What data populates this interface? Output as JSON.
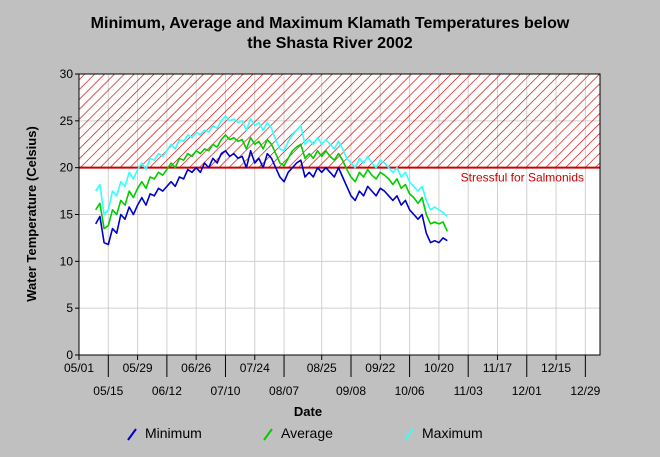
{
  "chart_data": {
    "type": "line",
    "title_line1": "Minimum, Average and Maximum Klamath Temperatures below",
    "title_line2": "the Shasta River 2002",
    "xlabel": "Date",
    "ylabel": "Water Temperature (Celsius)",
    "ylim": [
      0,
      30
    ],
    "yticks": [
      0,
      5,
      10,
      15,
      20,
      25,
      30
    ],
    "x_start": "05/01",
    "x_end": "01/05",
    "xticks_upper": [
      "05/01",
      "05/29",
      "06/26",
      "07/24",
      "08/25",
      "09/22",
      "10/20",
      "11/17",
      "12/15"
    ],
    "xticks_lower": [
      "05/15",
      "06/12",
      "07/10",
      "08/07",
      "09/08",
      "10/06",
      "11/03",
      "12/01",
      "12/29"
    ],
    "grid": true,
    "threshold": {
      "value": 20,
      "label": "Stressful for Salmonids",
      "color": "#cc0000",
      "band": [
        20,
        30
      ]
    },
    "legend_position": "bottom",
    "series": [
      {
        "name": "Minimum",
        "color": "#0000cc",
        "points": [
          [
            "05/09",
            14
          ],
          [
            "05/11",
            14.8
          ],
          [
            "05/13",
            12
          ],
          [
            "05/15",
            11.8
          ],
          [
            "05/17",
            13.5
          ],
          [
            "05/19",
            13
          ],
          [
            "05/21",
            15
          ],
          [
            "05/23",
            14.5
          ],
          [
            "05/25",
            15.8
          ],
          [
            "05/27",
            15
          ],
          [
            "05/29",
            16
          ],
          [
            "05/31",
            16.8
          ],
          [
            "06/02",
            16
          ],
          [
            "06/04",
            17.2
          ],
          [
            "06/06",
            17
          ],
          [
            "06/08",
            17.8
          ],
          [
            "06/10",
            17.5
          ],
          [
            "06/12",
            18
          ],
          [
            "06/14",
            18.5
          ],
          [
            "06/16",
            18
          ],
          [
            "06/18",
            19
          ],
          [
            "06/20",
            18.8
          ],
          [
            "06/22",
            19.8
          ],
          [
            "06/24",
            19.5
          ],
          [
            "06/26",
            20
          ],
          [
            "06/28",
            19.5
          ],
          [
            "06/30",
            20.5
          ],
          [
            "07/02",
            20
          ],
          [
            "07/04",
            21
          ],
          [
            "07/06",
            20.5
          ],
          [
            "07/08",
            21.5
          ],
          [
            "07/10",
            21.8
          ],
          [
            "07/12",
            21.2
          ],
          [
            "07/14",
            21.5
          ],
          [
            "07/16",
            21
          ],
          [
            "07/18",
            21.2
          ],
          [
            "07/20",
            20
          ],
          [
            "07/22",
            21.8
          ],
          [
            "07/24",
            20.5
          ],
          [
            "07/26",
            21
          ],
          [
            "07/28",
            20
          ],
          [
            "07/30",
            21.5
          ],
          [
            "08/01",
            21
          ],
          [
            "08/03",
            20
          ],
          [
            "08/05",
            19
          ],
          [
            "08/07",
            18.5
          ],
          [
            "08/09",
            19.5
          ],
          [
            "08/11",
            20
          ],
          [
            "08/13",
            20.5
          ],
          [
            "08/15",
            20.8
          ],
          [
            "08/17",
            19
          ],
          [
            "08/19",
            19.5
          ],
          [
            "08/21",
            19
          ],
          [
            "08/23",
            20
          ],
          [
            "08/25",
            19.5
          ],
          [
            "08/27",
            20
          ],
          [
            "08/29",
            19.5
          ],
          [
            "08/31",
            19
          ],
          [
            "09/02",
            20
          ],
          [
            "09/04",
            19
          ],
          [
            "09/06",
            18
          ],
          [
            "09/08",
            17
          ],
          [
            "09/10",
            16.5
          ],
          [
            "09/12",
            17.5
          ],
          [
            "09/14",
            17
          ],
          [
            "09/16",
            18
          ],
          [
            "09/18",
            17.5
          ],
          [
            "09/20",
            17
          ],
          [
            "09/22",
            17.8
          ],
          [
            "09/24",
            17.5
          ],
          [
            "09/26",
            17
          ],
          [
            "09/28",
            16.5
          ],
          [
            "09/30",
            17
          ],
          [
            "10/02",
            16
          ],
          [
            "10/04",
            16.5
          ],
          [
            "10/06",
            15.5
          ],
          [
            "10/08",
            15
          ],
          [
            "10/10",
            14.5
          ],
          [
            "10/12",
            15
          ],
          [
            "10/14",
            13
          ],
          [
            "10/16",
            12
          ],
          [
            "10/18",
            12.2
          ],
          [
            "10/20",
            12
          ],
          [
            "10/22",
            12.5
          ],
          [
            "10/24",
            12.2
          ]
        ]
      },
      {
        "name": "Average",
        "color": "#00cc00",
        "points": [
          [
            "05/09",
            15.5
          ],
          [
            "05/11",
            16.2
          ],
          [
            "05/13",
            13.5
          ],
          [
            "05/15",
            13.8
          ],
          [
            "05/17",
            15.5
          ],
          [
            "05/19",
            15
          ],
          [
            "05/21",
            16.5
          ],
          [
            "05/23",
            16
          ],
          [
            "05/25",
            17.5
          ],
          [
            "05/27",
            16.8
          ],
          [
            "05/29",
            17.8
          ],
          [
            "05/31",
            18.5
          ],
          [
            "06/02",
            17.8
          ],
          [
            "06/04",
            19
          ],
          [
            "06/06",
            18.8
          ],
          [
            "06/08",
            19.5
          ],
          [
            "06/10",
            19.2
          ],
          [
            "06/12",
            19.8
          ],
          [
            "06/14",
            20.5
          ],
          [
            "06/16",
            20
          ],
          [
            "06/18",
            21
          ],
          [
            "06/20",
            20.8
          ],
          [
            "06/22",
            21.5
          ],
          [
            "06/24",
            21.2
          ],
          [
            "06/26",
            21.8
          ],
          [
            "06/28",
            21.5
          ],
          [
            "06/30",
            22
          ],
          [
            "07/02",
            21.8
          ],
          [
            "07/04",
            22.5
          ],
          [
            "07/06",
            22.2
          ],
          [
            "07/08",
            23
          ],
          [
            "07/10",
            23.5
          ],
          [
            "07/12",
            23
          ],
          [
            "07/14",
            23.2
          ],
          [
            "07/16",
            22.8
          ],
          [
            "07/18",
            23
          ],
          [
            "07/20",
            22
          ],
          [
            "07/22",
            23.2
          ],
          [
            "07/24",
            22.5
          ],
          [
            "07/26",
            22.8
          ],
          [
            "07/28",
            22
          ],
          [
            "07/30",
            23
          ],
          [
            "08/01",
            22.5
          ],
          [
            "08/03",
            21.5
          ],
          [
            "08/05",
            20.5
          ],
          [
            "08/07",
            20.2
          ],
          [
            "08/09",
            21
          ],
          [
            "08/11",
            21.8
          ],
          [
            "08/13",
            22.2
          ],
          [
            "08/15",
            22.5
          ],
          [
            "08/17",
            21
          ],
          [
            "08/19",
            21.5
          ],
          [
            "08/21",
            21
          ],
          [
            "08/23",
            21.8
          ],
          [
            "08/25",
            21.2
          ],
          [
            "08/27",
            21.8
          ],
          [
            "08/29",
            21.2
          ],
          [
            "08/31",
            20.8
          ],
          [
            "09/02",
            21.5
          ],
          [
            "09/04",
            20.8
          ],
          [
            "09/06",
            19.8
          ],
          [
            "09/08",
            19
          ],
          [
            "09/10",
            18.5
          ],
          [
            "09/12",
            19.5
          ],
          [
            "09/14",
            19
          ],
          [
            "09/16",
            19.8
          ],
          [
            "09/18",
            19.2
          ],
          [
            "09/20",
            18.8
          ],
          [
            "09/22",
            19.5
          ],
          [
            "09/24",
            19.2
          ],
          [
            "09/26",
            18.8
          ],
          [
            "09/28",
            18.2
          ],
          [
            "09/30",
            18.8
          ],
          [
            "10/02",
            17.8
          ],
          [
            "10/04",
            18.2
          ],
          [
            "10/06",
            17.2
          ],
          [
            "10/08",
            16.8
          ],
          [
            "10/10",
            16.2
          ],
          [
            "10/12",
            16.8
          ],
          [
            "10/14",
            15
          ],
          [
            "10/16",
            14
          ],
          [
            "10/18",
            14.2
          ],
          [
            "10/20",
            14
          ],
          [
            "10/22",
            14.2
          ],
          [
            "10/24",
            13.2
          ]
        ]
      },
      {
        "name": "Maximum",
        "color": "#33ffff",
        "points": [
          [
            "05/09",
            17.5
          ],
          [
            "05/11",
            18.2
          ],
          [
            "05/13",
            15
          ],
          [
            "05/15",
            15.5
          ],
          [
            "05/17",
            17.5
          ],
          [
            "05/19",
            17
          ],
          [
            "05/21",
            18.5
          ],
          [
            "05/23",
            18
          ],
          [
            "05/25",
            19.5
          ],
          [
            "05/27",
            18.8
          ],
          [
            "05/29",
            19.8
          ],
          [
            "05/31",
            20.5
          ],
          [
            "06/02",
            19.8
          ],
          [
            "06/04",
            21
          ],
          [
            "06/06",
            20.8
          ],
          [
            "06/08",
            21.5
          ],
          [
            "06/10",
            21.2
          ],
          [
            "06/12",
            21.8
          ],
          [
            "06/14",
            22.5
          ],
          [
            "06/16",
            22
          ],
          [
            "06/18",
            23
          ],
          [
            "06/20",
            22.8
          ],
          [
            "06/22",
            23.5
          ],
          [
            "06/24",
            23.2
          ],
          [
            "06/26",
            23.8
          ],
          [
            "06/28",
            23.5
          ],
          [
            "06/30",
            24
          ],
          [
            "07/02",
            23.8
          ],
          [
            "07/04",
            24.5
          ],
          [
            "07/06",
            24.2
          ],
          [
            "07/08",
            25
          ],
          [
            "07/10",
            25.5
          ],
          [
            "07/12",
            25
          ],
          [
            "07/14",
            25.2
          ],
          [
            "07/16",
            24.8
          ],
          [
            "07/18",
            25
          ],
          [
            "07/20",
            24
          ],
          [
            "07/22",
            25.2
          ],
          [
            "07/24",
            24.5
          ],
          [
            "07/26",
            24.8
          ],
          [
            "07/28",
            24
          ],
          [
            "07/30",
            24.8
          ],
          [
            "08/01",
            24.2
          ],
          [
            "08/03",
            23
          ],
          [
            "08/05",
            22
          ],
          [
            "08/07",
            21.8
          ],
          [
            "08/09",
            22.8
          ],
          [
            "08/11",
            23.5
          ],
          [
            "08/13",
            24
          ],
          [
            "08/15",
            24.5
          ],
          [
            "08/17",
            22.5
          ],
          [
            "08/19",
            23
          ],
          [
            "08/21",
            22.5
          ],
          [
            "08/23",
            23.2
          ],
          [
            "08/25",
            22.5
          ],
          [
            "08/27",
            23
          ],
          [
            "08/29",
            22.5
          ],
          [
            "08/31",
            22
          ],
          [
            "09/02",
            22.8
          ],
          [
            "09/04",
            22
          ],
          [
            "09/06",
            21
          ],
          [
            "09/08",
            20.5
          ],
          [
            "09/10",
            20
          ],
          [
            "09/12",
            21
          ],
          [
            "09/14",
            20.5
          ],
          [
            "09/16",
            21.2
          ],
          [
            "09/18",
            20.5
          ],
          [
            "09/20",
            20
          ],
          [
            "09/22",
            20.8
          ],
          [
            "09/24",
            20.5
          ],
          [
            "09/26",
            20
          ],
          [
            "09/28",
            19.5
          ],
          [
            "09/30",
            20
          ],
          [
            "10/02",
            19
          ],
          [
            "10/04",
            19.5
          ],
          [
            "10/06",
            18.5
          ],
          [
            "10/08",
            18
          ],
          [
            "10/10",
            17.5
          ],
          [
            "10/12",
            18
          ],
          [
            "10/14",
            16.5
          ],
          [
            "10/16",
            15.5
          ],
          [
            "10/18",
            15.8
          ],
          [
            "10/20",
            15.5
          ],
          [
            "10/22",
            15.2
          ],
          [
            "10/24",
            14.8
          ]
        ]
      }
    ]
  }
}
